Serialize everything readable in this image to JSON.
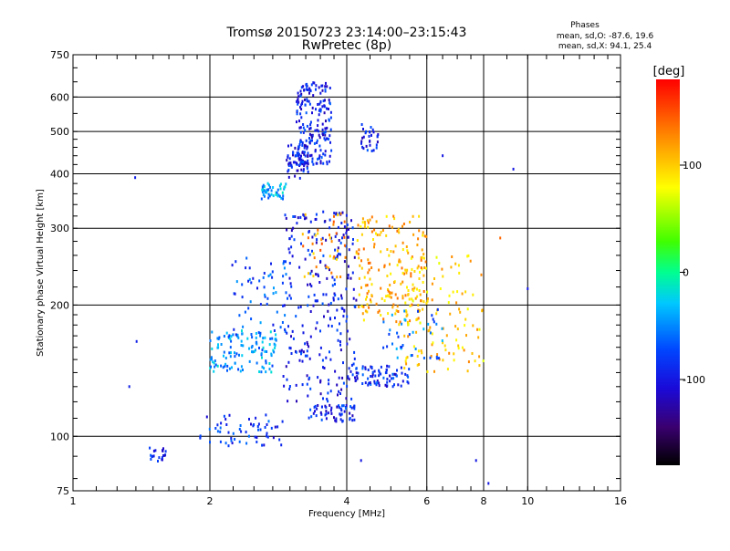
{
  "chart_data": {
    "type": "scatter",
    "title": "Tromsø 20150723 23:14:00–23:15:43",
    "subtitle": "RwPretec (8p)",
    "xlabel": "Frequency [MHz]",
    "ylabel": "Stationary phase Virtual Height [km]",
    "x_scale": "log",
    "y_scale": "log",
    "xlim": [
      1,
      16
    ],
    "ylim": [
      75,
      750
    ],
    "x_ticks": [
      1,
      2,
      4,
      6,
      8,
      10,
      16
    ],
    "y_ticks": [
      75,
      100,
      200,
      300,
      400,
      500,
      600,
      750
    ],
    "grid": true,
    "stats": {
      "title": "Phases",
      "line_o": "mean, sd,O: -87.6, 19.6",
      "line_x": "mean, sd,X:  94.1, 25.4"
    },
    "colorbar": {
      "label": "[deg]",
      "range": [
        -180,
        180
      ],
      "ticks": [
        "100",
        "0",
        "-100"
      ],
      "tick_values": [
        100,
        0,
        -100
      ]
    },
    "clusters": [
      {
        "x": [
          1.45,
          1.6
        ],
        "y": [
          87,
          95
        ],
        "phase": -90,
        "n": 20
      },
      {
        "x": [
          1.9,
          2.9
        ],
        "y": [
          95,
          112
        ],
        "phase": -85,
        "n": 60
      },
      {
        "x": [
          2.0,
          2.8
        ],
        "y": [
          140,
          175
        ],
        "phase": -45,
        "n": 120
      },
      {
        "x": [
          2.2,
          3.0
        ],
        "y": [
          170,
          260
        ],
        "phase": -70,
        "n": 60
      },
      {
        "x": [
          2.6,
          2.95
        ],
        "y": [
          350,
          380
        ],
        "phase": -40,
        "n": 45
      },
      {
        "x": [
          2.95,
          3.3
        ],
        "y": [
          390,
          470
        ],
        "phase": -95,
        "n": 70
      },
      {
        "x": [
          3.1,
          3.7
        ],
        "y": [
          420,
          650
        ],
        "phase": -92,
        "n": 190
      },
      {
        "x": [
          4.3,
          4.7
        ],
        "y": [
          450,
          520
        ],
        "phase": -92,
        "n": 30
      },
      {
        "x": [
          2.9,
          4.2
        ],
        "y": [
          120,
          330
        ],
        "phase": -95,
        "n": 260
      },
      {
        "x": [
          3.3,
          4.2
        ],
        "y": [
          108,
          118
        ],
        "phase": -92,
        "n": 60
      },
      {
        "x": [
          4.0,
          5.5
        ],
        "y": [
          130,
          145
        ],
        "phase": -88,
        "n": 80
      },
      {
        "x": [
          4.2,
          6.0
        ],
        "y": [
          180,
          320
        ],
        "phase": 110,
        "n": 200
      },
      {
        "x": [
          5.3,
          8.0
        ],
        "y": [
          140,
          260
        ],
        "phase": 100,
        "n": 110
      },
      {
        "x": [
          3.2,
          4.0
        ],
        "y": [
          230,
          330
        ],
        "phase": 120,
        "n": 40
      },
      {
        "x": [
          4.8,
          6.5
        ],
        "y": [
          150,
          200
        ],
        "phase": -60,
        "n": 40
      }
    ],
    "isolated_points": [
      {
        "x": 1.37,
        "y": 392,
        "phase": -95
      },
      {
        "x": 1.38,
        "y": 165,
        "phase": -95
      },
      {
        "x": 1.33,
        "y": 130,
        "phase": -95
      },
      {
        "x": 9.3,
        "y": 410,
        "phase": -100
      },
      {
        "x": 6.5,
        "y": 440,
        "phase": -100
      },
      {
        "x": 10.0,
        "y": 218,
        "phase": -100
      },
      {
        "x": 8.2,
        "y": 78,
        "phase": -100
      },
      {
        "x": 8.7,
        "y": 285,
        "phase": 140
      },
      {
        "x": 7.7,
        "y": 88,
        "phase": -100
      },
      {
        "x": 4.3,
        "y": 88,
        "phase": -100
      }
    ]
  }
}
